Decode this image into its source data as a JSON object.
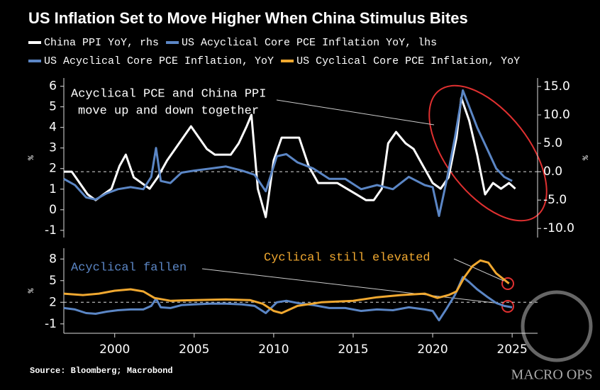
{
  "title": "US Inflation Set to Move Higher When China Stimulus Bites",
  "source": "Source: Bloomberg; Macrobond",
  "watermark": "MACRO OPS",
  "chart_data": [
    {
      "type": "line",
      "y_label": "%",
      "annotations": [
        "Acyclical PCE and China PPI",
        "move up and down together"
      ],
      "xlim": [
        1996.8,
        2026.6
      ],
      "ylim": [
        -1.35,
        6.4
      ],
      "yticks": [
        -1,
        0,
        1,
        2,
        3,
        4,
        5,
        6
      ],
      "y2lim": [
        -11.6,
        16.5
      ],
      "y2ticks": [
        {
          "value": -10,
          "label": "-10.0"
        },
        {
          "value": -5,
          "label": "-5.0"
        },
        {
          "value": 0,
          "label": "0.0"
        },
        {
          "value": 5,
          "label": "5.0"
        },
        {
          "value": 10,
          "label": "10.0"
        },
        {
          "value": 15,
          "label": "15.0"
        }
      ],
      "ref_line": {
        "axis": "y2",
        "value": 0
      },
      "series": [
        {
          "name": "China PPI YoY, rhs",
          "color": "#ffffff",
          "axis": "y2",
          "x": [
            1996.8,
            1997.3,
            1997.8,
            1998.3,
            1998.8,
            1999.3,
            1999.8,
            2000.3,
            2000.7,
            2001.2,
            2001.7,
            2002.2,
            2002.7,
            2003.3,
            2003.8,
            2004.3,
            2004.8,
            2005.3,
            2005.8,
            2006.3,
            2006.8,
            2007.3,
            2007.8,
            2008.3,
            2008.6,
            2009.0,
            2009.5,
            2010.0,
            2010.5,
            2011.0,
            2011.6,
            2012.2,
            2012.8,
            2013.4,
            2014.0,
            2014.6,
            2015.2,
            2015.8,
            2016.3,
            2016.8,
            2017.2,
            2017.7,
            2018.3,
            2018.8,
            2019.4,
            2020.0,
            2020.5,
            2021.0,
            2021.5,
            2021.8,
            2022.3,
            2022.8,
            2023.3,
            2023.8,
            2024.3,
            2024.8,
            2025.2
          ],
          "values": [
            0,
            0,
            -2,
            -4,
            -5,
            -4,
            -3,
            1,
            3,
            -1,
            -2,
            -3,
            -1,
            2,
            4,
            6,
            8,
            6,
            4,
            3,
            3,
            3,
            5,
            8,
            10,
            -3,
            -8,
            2,
            6,
            6,
            6,
            1,
            -2,
            -2,
            -2,
            -3,
            -4,
            -5,
            -5,
            -3,
            5,
            7,
            5,
            4,
            1,
            -2,
            -3,
            -1,
            6,
            13,
            9,
            3,
            -4,
            -2,
            -3,
            -2,
            -3
          ]
        },
        {
          "name": "US Acyclical Core PCE Inflation YoY, lhs",
          "color": "#5b86c5",
          "x": [
            1996.8,
            1997.5,
            1998.2,
            1998.8,
            1999.5,
            2000.2,
            2001.0,
            2001.8,
            2002.3,
            2002.6,
            2002.9,
            2003.5,
            2004.2,
            2005.0,
            2006.0,
            2007.0,
            2008.0,
            2008.8,
            2009.5,
            2010.2,
            2010.8,
            2011.5,
            2012.5,
            2013.5,
            2014.5,
            2015.5,
            2016.5,
            2017.5,
            2018.5,
            2019.5,
            2020.0,
            2020.4,
            2020.9,
            2021.4,
            2021.9,
            2022.3,
            2022.8,
            2023.4,
            2024.0,
            2024.5,
            2025.0
          ],
          "values": [
            1.5,
            1.2,
            0.6,
            0.5,
            0.8,
            1.0,
            1.1,
            1.0,
            1.6,
            3.0,
            1.4,
            1.3,
            1.8,
            1.9,
            2.0,
            2.1,
            1.9,
            1.7,
            0.9,
            2.6,
            2.7,
            2.3,
            2.0,
            1.5,
            1.5,
            1.0,
            1.2,
            1.0,
            1.6,
            1.2,
            1.1,
            -0.3,
            1.5,
            3.5,
            5.8,
            5.0,
            4.0,
            3.0,
            2.0,
            1.6,
            1.4
          ]
        }
      ]
    },
    {
      "type": "line",
      "y_label": "%",
      "annotations": [
        "Acyclical fallen",
        "Cyclical still elevated"
      ],
      "xlim": [
        1996.8,
        2026.6
      ],
      "xticks": [
        2000,
        2005,
        2010,
        2015,
        2020,
        2025
      ],
      "ylim": [
        -2.3,
        9.5
      ],
      "yticks": [
        -1,
        2,
        5,
        8
      ],
      "ref_line": {
        "axis": "y",
        "value": 2
      },
      "series": [
        {
          "name": "US Acyclical Core PCE Inflation, YoY",
          "color": "#5b86c5",
          "x": [
            1996.8,
            1997.5,
            1998.2,
            1998.8,
            1999.5,
            2000.2,
            2001.0,
            2001.8,
            2002.3,
            2002.6,
            2002.9,
            2003.5,
            2004.2,
            2005.0,
            2006.0,
            2007.0,
            2008.0,
            2008.8,
            2009.5,
            2010.2,
            2010.8,
            2011.5,
            2012.5,
            2013.5,
            2014.5,
            2015.5,
            2016.5,
            2017.5,
            2018.5,
            2019.5,
            2020.0,
            2020.4,
            2020.9,
            2021.4,
            2021.9,
            2022.3,
            2022.8,
            2023.4,
            2024.0,
            2024.5,
            2025.0
          ],
          "values": [
            1.2,
            1.0,
            0.5,
            0.4,
            0.7,
            0.9,
            1.0,
            1.0,
            1.5,
            2.5,
            1.3,
            1.2,
            1.6,
            1.7,
            1.8,
            1.8,
            1.7,
            1.5,
            0.5,
            2.0,
            2.2,
            1.9,
            1.6,
            1.2,
            1.2,
            0.8,
            1.0,
            0.9,
            1.3,
            1.0,
            0.8,
            -0.5,
            1.2,
            3.0,
            5.5,
            4.8,
            3.8,
            2.8,
            1.9,
            1.5,
            1.3
          ]
        },
        {
          "name": "US Cyclical Core PCE Inflation, YoY",
          "color": "#f0a830",
          "x": [
            1996.8,
            1998,
            1999,
            2000,
            2001,
            2001.8,
            2002.5,
            2003.5,
            2005,
            2007,
            2008.5,
            2009.3,
            2010.0,
            2010.5,
            2011.5,
            2013,
            2015,
            2016.5,
            2018,
            2019.5,
            2020.3,
            2021,
            2021.5,
            2022,
            2022.5,
            2023,
            2023.5,
            2024,
            2024.8
          ],
          "values": [
            3.2,
            3.0,
            3.2,
            3.6,
            3.8,
            3.5,
            2.6,
            2.2,
            2.3,
            2.4,
            2.3,
            1.8,
            0.8,
            0.5,
            1.5,
            2.0,
            2.2,
            2.7,
            3.0,
            3.2,
            2.6,
            3.0,
            3.5,
            5.5,
            7.0,
            7.8,
            7.5,
            6.0,
            4.6
          ]
        }
      ]
    }
  ]
}
